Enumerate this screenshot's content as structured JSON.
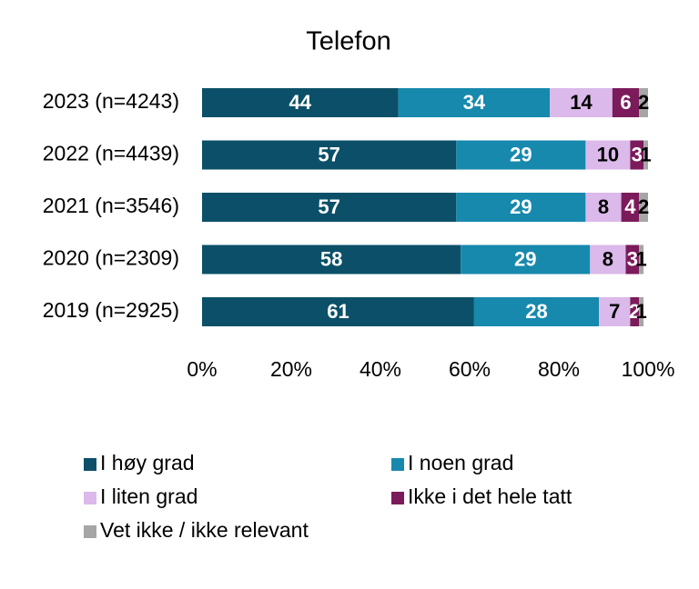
{
  "chart_data": {
    "type": "stacked_barh",
    "title": "Telefon",
    "categories": [
      "2023 (n=4243)",
      "2022 (n=4439)",
      "2021 (n=3546)",
      "2020 (n=2309)",
      "2019 (n=2925)"
    ],
    "series": [
      {
        "name": "I høy grad",
        "color": "#0b5068",
        "values": [
          44,
          57,
          57,
          58,
          61
        ]
      },
      {
        "name": "I noen grad",
        "color": "#1789ad",
        "values": [
          34,
          29,
          29,
          29,
          28
        ]
      },
      {
        "name": "I liten grad",
        "color": "#dbb9ea",
        "values": [
          14,
          10,
          8,
          8,
          7
        ]
      },
      {
        "name": "Ikke i det hele tatt",
        "color": "#7b1b5b",
        "values": [
          6,
          3,
          4,
          3,
          2
        ]
      },
      {
        "name": "Vet ikke / ikke relevant",
        "color": "#a6a6a6",
        "values": [
          2,
          1,
          2,
          1,
          1
        ]
      }
    ],
    "xlim": [
      0,
      100
    ],
    "xticks": [
      {
        "value": 0,
        "label": "0%"
      },
      {
        "value": 20,
        "label": "20%"
      },
      {
        "value": 40,
        "label": "40%"
      },
      {
        "value": 60,
        "label": "60%"
      },
      {
        "value": 80,
        "label": "80%"
      },
      {
        "value": 100,
        "label": "100%"
      }
    ],
    "legend": "bottom"
  }
}
